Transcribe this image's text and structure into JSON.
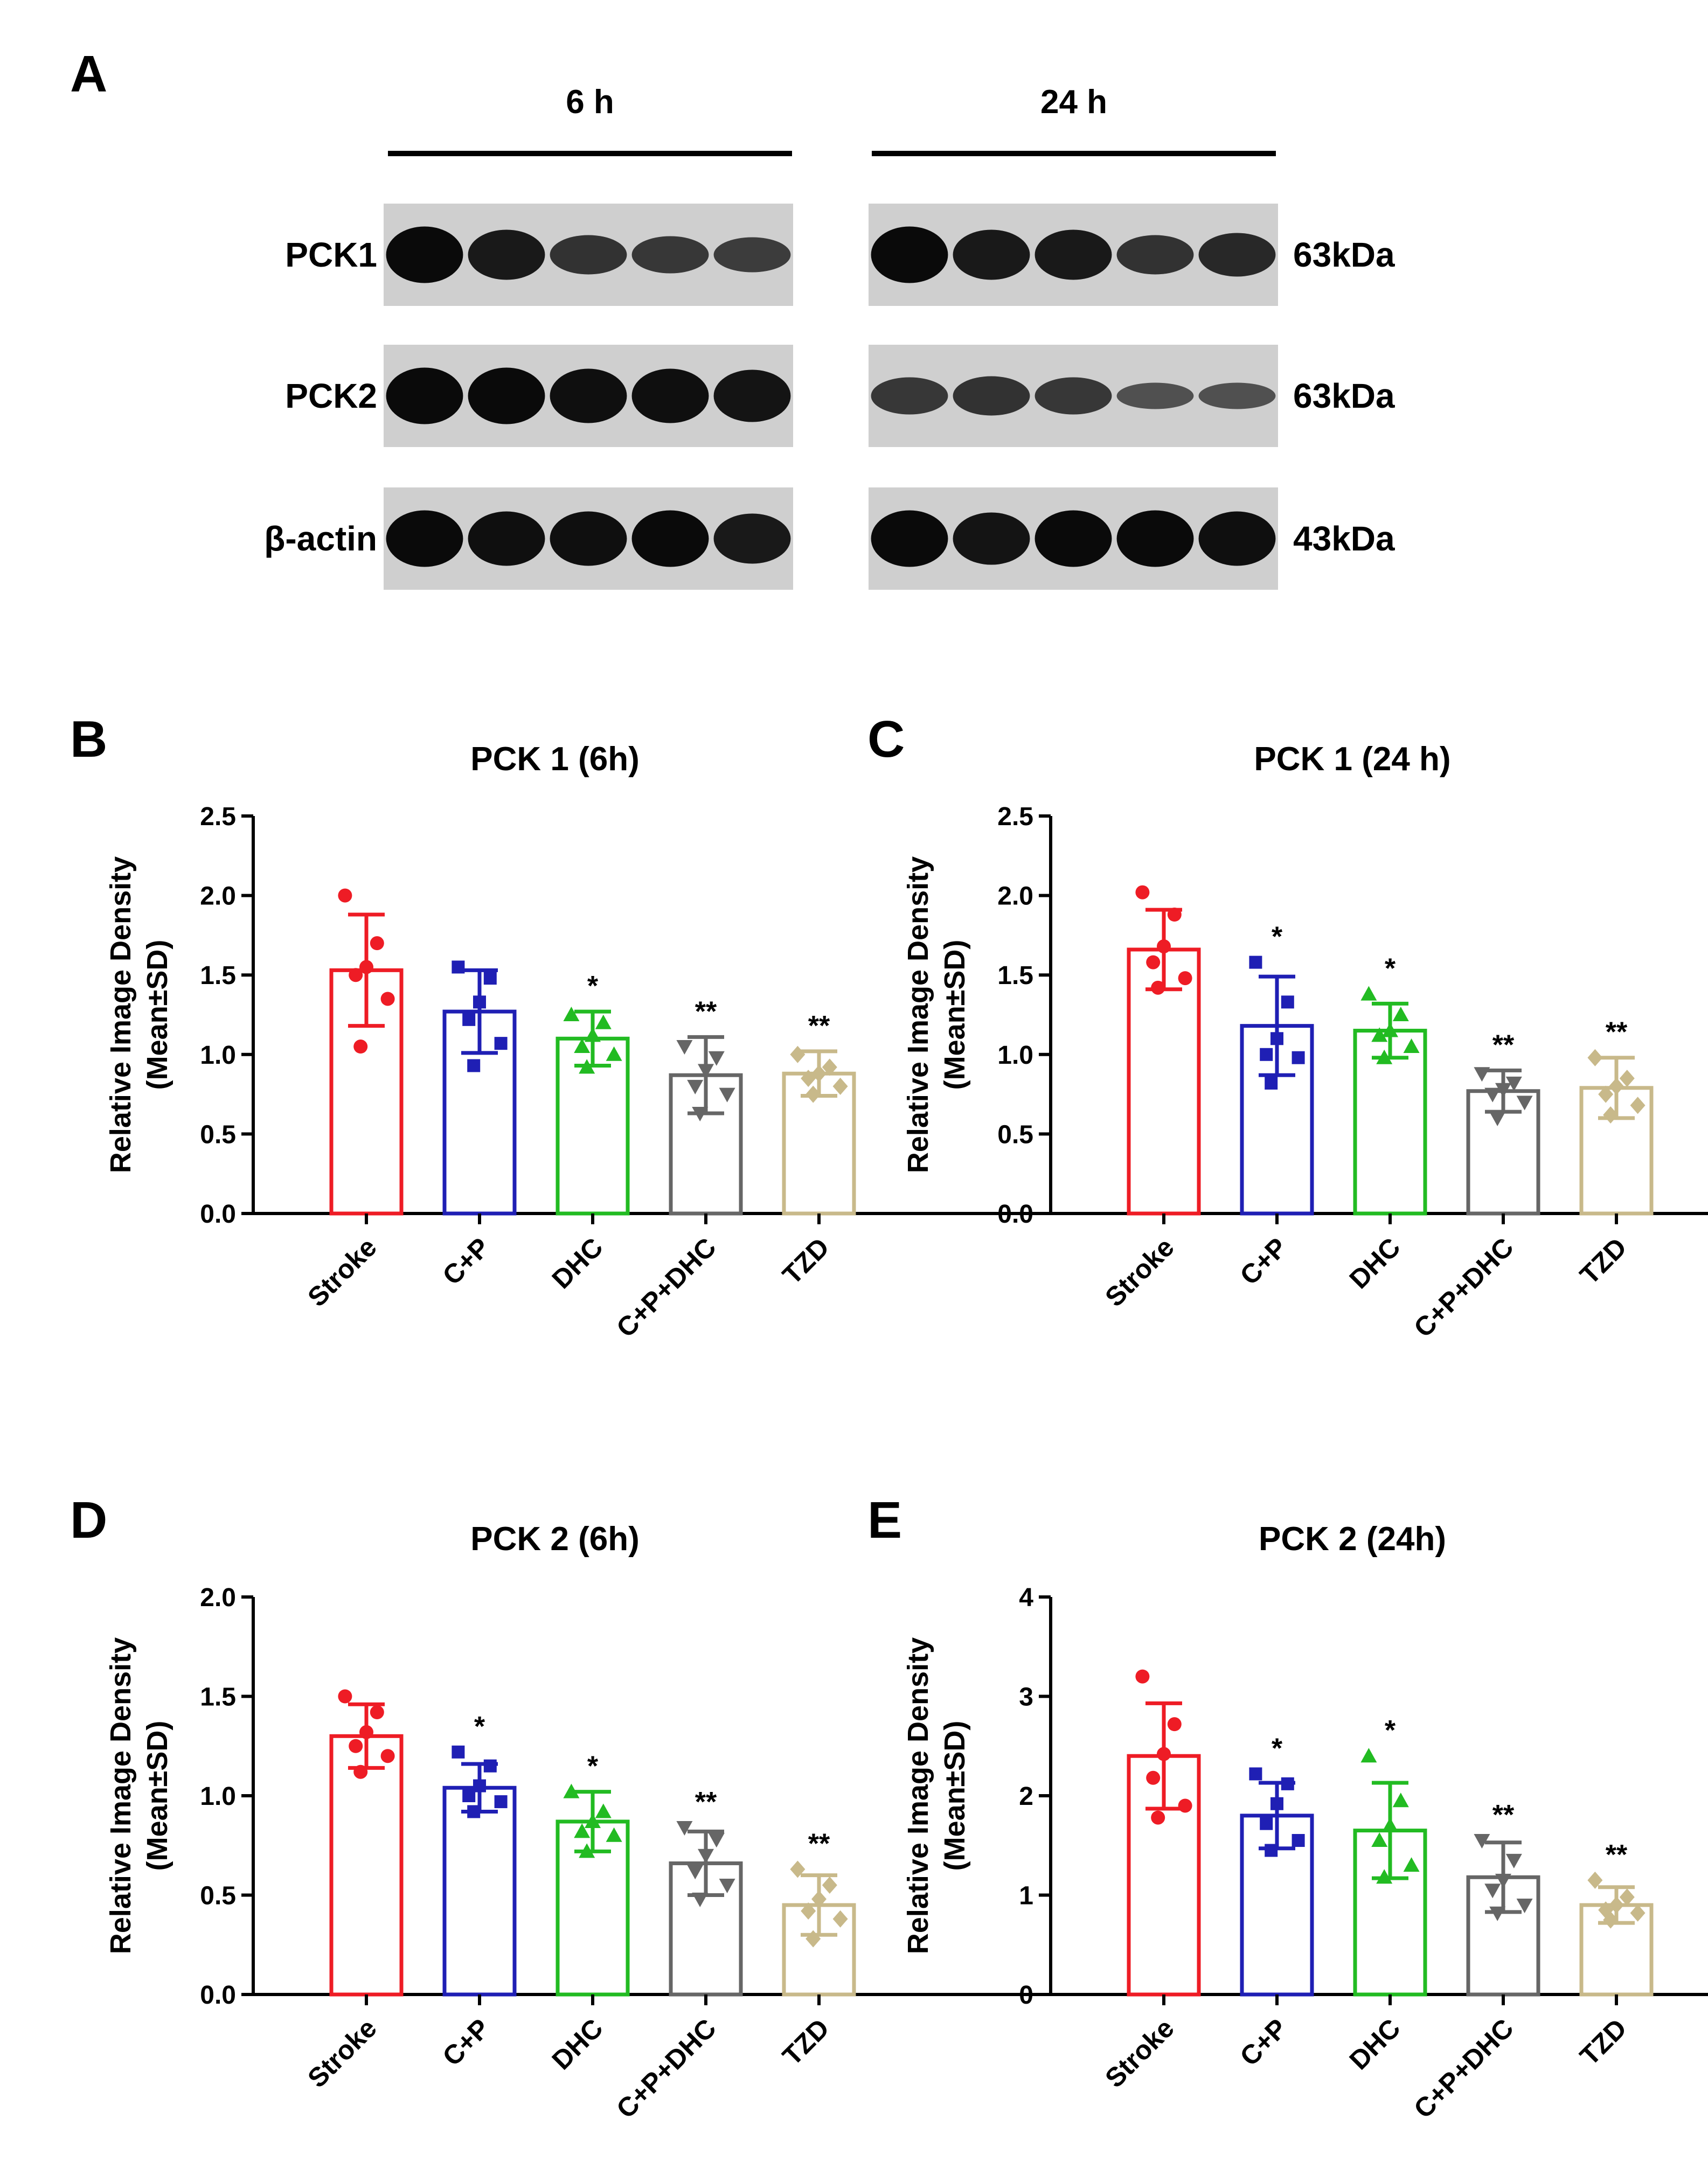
{
  "panel_a": {
    "label": "A",
    "time_labels": [
      "6 h",
      "24 h"
    ],
    "rows": [
      {
        "protein": "PCK1",
        "size": "63kDa"
      },
      {
        "protein": "PCK2",
        "size": "63kDa"
      },
      {
        "protein": "β-actin",
        "size": "43kDa"
      }
    ],
    "band_intensity": {
      "PCK1": {
        "6h": [
          1.0,
          0.85,
          0.6,
          0.55,
          0.5
        ],
        "24h": [
          1.0,
          0.85,
          0.85,
          0.6,
          0.7
        ]
      },
      "PCK2": {
        "6h": [
          1.0,
          1.0,
          0.95,
          0.95,
          0.9
        ],
        "24h": [
          0.55,
          0.6,
          0.55,
          0.3,
          0.3
        ]
      },
      "beta_actin": {
        "6h": [
          1.0,
          0.95,
          0.95,
          1.0,
          0.85
        ],
        "24h": [
          1.0,
          0.9,
          1.0,
          1.0,
          0.95
        ]
      }
    }
  },
  "colors": {
    "Stroke": "#ee1c25",
    "C+P": "#1f1fb4",
    "DHC": "#22bb22",
    "C+P+DHC": "#666666",
    "TZD": "#c8b98a"
  },
  "chart_data": [
    {
      "panel": "B",
      "type": "bar",
      "title": "PCK 1 (6h)",
      "ylabel_line1": "Relative Image Density",
      "ylabel_line2": "(Mean±SD)",
      "categories": [
        "Stroke",
        "C+P",
        "DHC",
        "C+P+DHC",
        "TZD"
      ],
      "ylim": [
        0,
        2.5
      ],
      "yticks": [
        "0.0",
        "0.5",
        "1.0",
        "1.5",
        "2.0",
        "2.5"
      ],
      "means": [
        1.53,
        1.27,
        1.1,
        0.87,
        0.88
      ],
      "sd": [
        0.35,
        0.26,
        0.17,
        0.24,
        0.14
      ],
      "significance": [
        "",
        "",
        "*",
        "**",
        "**"
      ],
      "points": [
        [
          2.0,
          1.7,
          1.55,
          1.5,
          1.35,
          1.05
        ],
        [
          1.55,
          1.48,
          1.33,
          1.22,
          1.07,
          0.93
        ],
        [
          1.25,
          1.2,
          1.12,
          1.05,
          1.0,
          0.92
        ],
        [
          1.05,
          0.98,
          0.9,
          0.8,
          0.75,
          0.63
        ],
        [
          1.0,
          0.92,
          0.88,
          0.85,
          0.8,
          0.75
        ]
      ]
    },
    {
      "panel": "C",
      "type": "bar",
      "title": "PCK 1 (24 h)",
      "ylabel_line1": "Relative Image Density",
      "ylabel_line2": "(Mean±SD)",
      "categories": [
        "Stroke",
        "C+P",
        "DHC",
        "C+P+DHC",
        "TZD"
      ],
      "ylim": [
        0,
        2.5
      ],
      "yticks": [
        "0.0",
        "0.5",
        "1.0",
        "1.5",
        "2.0",
        "2.5"
      ],
      "means": [
        1.66,
        1.18,
        1.15,
        0.77,
        0.79
      ],
      "sd": [
        0.25,
        0.31,
        0.17,
        0.13,
        0.19
      ],
      "significance": [
        "",
        "*",
        "*",
        "**",
        "**"
      ],
      "points": [
        [
          2.02,
          1.88,
          1.68,
          1.58,
          1.48,
          1.42
        ],
        [
          1.58,
          1.33,
          1.1,
          1.0,
          0.98,
          0.82
        ],
        [
          1.38,
          1.25,
          1.15,
          1.12,
          1.05,
          0.98
        ],
        [
          0.88,
          0.82,
          0.78,
          0.75,
          0.7,
          0.6
        ],
        [
          0.98,
          0.85,
          0.8,
          0.75,
          0.68,
          0.62
        ]
      ]
    },
    {
      "panel": "D",
      "type": "bar",
      "title": "PCK 2 (6h)",
      "ylabel_line1": "Relative Image Density",
      "ylabel_line2": "(Mean±SD)",
      "categories": [
        "Stroke",
        "C+P",
        "DHC",
        "C+P+DHC",
        "TZD"
      ],
      "ylim": [
        0,
        2.0
      ],
      "yticks": [
        "0.0",
        "0.5",
        "1.0",
        "1.5",
        "2.0"
      ],
      "means": [
        1.3,
        1.04,
        0.87,
        0.66,
        0.45
      ],
      "sd": [
        0.16,
        0.12,
        0.15,
        0.16,
        0.15
      ],
      "significance": [
        "",
        "*",
        "*",
        "**",
        "**"
      ],
      "points": [
        [
          1.5,
          1.42,
          1.32,
          1.25,
          1.2,
          1.12
        ],
        [
          1.22,
          1.15,
          1.05,
          1.0,
          0.97,
          0.92
        ],
        [
          1.02,
          0.92,
          0.87,
          0.82,
          0.8,
          0.72
        ],
        [
          0.84,
          0.78,
          0.7,
          0.62,
          0.55,
          0.48
        ],
        [
          0.63,
          0.55,
          0.48,
          0.42,
          0.38,
          0.28
        ]
      ]
    },
    {
      "panel": "E",
      "type": "bar",
      "title": "PCK 2 (24h)",
      "ylabel_line1": "Relative Image Density",
      "ylabel_line2": "(Mean±SD)",
      "categories": [
        "Stroke",
        "C+P",
        "DHC",
        "C+P+DHC",
        "TZD"
      ],
      "ylim": [
        0,
        4
      ],
      "yticks": [
        "0",
        "1",
        "2",
        "3",
        "4"
      ],
      "means": [
        2.4,
        1.8,
        1.65,
        1.18,
        0.9
      ],
      "sd": [
        0.53,
        0.33,
        0.48,
        0.35,
        0.18
      ],
      "significance": [
        "",
        "*",
        "*",
        "**",
        "**"
      ],
      "points": [
        [
          3.2,
          2.72,
          2.42,
          2.18,
          1.9,
          1.78
        ],
        [
          2.22,
          2.12,
          1.92,
          1.72,
          1.55,
          1.45
        ],
        [
          2.4,
          1.95,
          1.7,
          1.55,
          1.3,
          1.18
        ],
        [
          1.55,
          1.35,
          1.15,
          1.05,
          0.9,
          0.82
        ],
        [
          1.15,
          0.98,
          0.9,
          0.85,
          0.82,
          0.75
        ]
      ]
    }
  ]
}
